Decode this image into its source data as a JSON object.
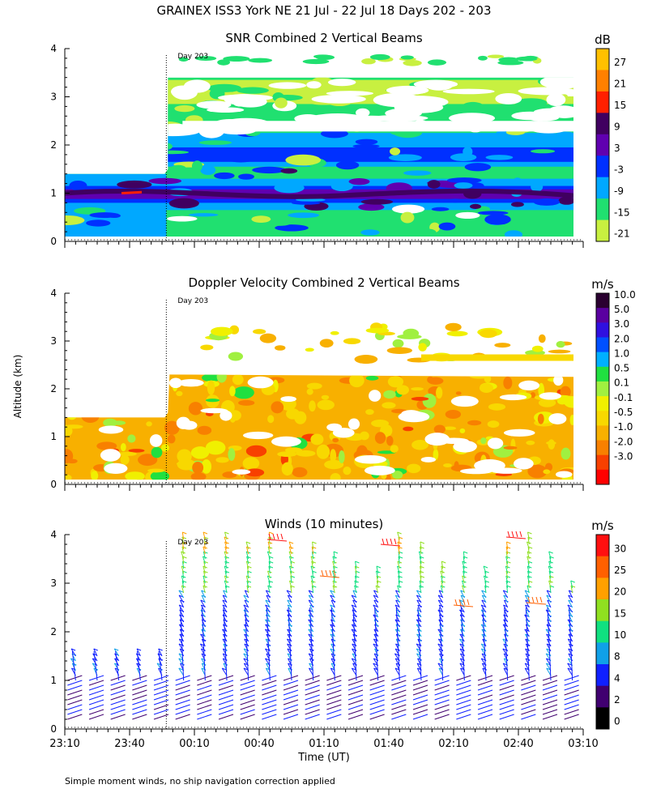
{
  "title": "GRAINEX ISS3 York NE  21 Jul - 22 Jul 18 Days 202 - 203",
  "y_axis_label": "Altitude (km)",
  "x_axis_label": "Time (UT)",
  "footnote": "Simple moment winds, no ship navigation correction applied",
  "day_marker": "Day 203",
  "x_ticks": [
    "23:10",
    "23:40",
    "00:10",
    "00:40",
    "01:10",
    "01:40",
    "02:10",
    "02:40",
    "03:10"
  ],
  "y_ticks": [
    "0",
    "1",
    "2",
    "3",
    "4"
  ],
  "panels": [
    {
      "title": "SNR Combined 2 Vertical Beams",
      "unit": "dB",
      "colorbar_labels": [
        "27",
        "21",
        "15",
        "9",
        "3",
        "-3",
        "-9",
        "-15",
        "-21"
      ],
      "colors": [
        "#ffc000",
        "#ff8000",
        "#ff2000",
        "#400060",
        "#6000b0",
        "#0030ff",
        "#00a8ff",
        "#20e070",
        "#c8f040"
      ]
    },
    {
      "title": "Doppler Velocity Combined 2 Vertical Beams",
      "unit": "m/s",
      "colorbar_labels": [
        "10.0",
        "5.0",
        "3.0",
        "2.0",
        "1.0",
        "0.5",
        "0.1",
        "-0.1",
        "-0.5",
        "-1.0",
        "-2.0",
        "-3.0"
      ],
      "colors": [
        "#2a0030",
        "#5a00a0",
        "#3010e0",
        "#0050ff",
        "#00b0ff",
        "#20e040",
        "#a0f040",
        "#f0f000",
        "#f8d800",
        "#f8b000",
        "#f88000",
        "#f84000",
        "#ff0000"
      ]
    },
    {
      "title": "Winds (10 minutes)",
      "unit": "m/s",
      "colorbar_labels": [
        "30",
        "25",
        "20",
        "15",
        "10",
        "8",
        "4",
        "2",
        "0"
      ],
      "colors": [
        "#ff1010",
        "#ff6000",
        "#ffa000",
        "#90e020",
        "#10e080",
        "#10a0e8",
        "#1020ff",
        "#400070",
        "#000000"
      ]
    }
  ],
  "chart_data": [
    {
      "type": "heatmap",
      "title": "SNR Combined 2 Vertical Beams",
      "unit": "dB",
      "xlabel": "Time (UT)",
      "ylabel": "Altitude (km)",
      "x_range": [
        "23:10",
        "03:10"
      ],
      "ylim": [
        0,
        4
      ],
      "colorbar_levels": [
        27,
        21,
        15,
        9,
        3,
        -3,
        -9,
        -15,
        -21
      ],
      "day_boundary": "00:00",
      "data_extent_km": [
        {
          "from": "23:10",
          "to": "00:00",
          "top": 1.4
        },
        {
          "from": "00:00",
          "to": "03:00",
          "top": 3.9
        }
      ],
      "bands": [
        {
          "alt_km": 1.0,
          "snr_db": 3
        },
        {
          "alt_km": 1.8,
          "snr_db": -3
        },
        {
          "alt_km": 2.1,
          "snr_db": -3
        },
        {
          "alt_km": 2.6,
          "snr_db": -15
        },
        {
          "alt_km": 3.2,
          "snr_db": -21
        }
      ]
    },
    {
      "type": "heatmap",
      "title": "Doppler Velocity Combined 2 Vertical Beams",
      "unit": "m/s",
      "xlabel": "Time (UT)",
      "ylabel": "Altitude (km)",
      "x_range": [
        "23:10",
        "03:10"
      ],
      "ylim": [
        0,
        4
      ],
      "colorbar_levels": [
        10.0,
        5.0,
        3.0,
        2.0,
        1.0,
        0.5,
        0.1,
        -0.1,
        -0.5,
        -1.0,
        -2.0,
        -3.0
      ],
      "day_boundary": "00:00",
      "data_extent_km": [
        {
          "from": "23:10",
          "to": "00:00",
          "top": 1.4
        },
        {
          "from": "00:00",
          "to": "03:00",
          "top": 2.3
        }
      ],
      "typical_velocity_m_s": -0.5
    },
    {
      "type": "scatter",
      "title": "Winds (10 minutes)",
      "unit": "m/s",
      "xlabel": "Time (UT)",
      "ylabel": "Altitude (km)",
      "x_range": [
        "23:10",
        "03:10"
      ],
      "ylim": [
        0,
        4
      ],
      "colorbar_levels": [
        30,
        25,
        20,
        15,
        10,
        8,
        4,
        2,
        0
      ],
      "profile_times": [
        "23:15",
        "23:25",
        "23:35",
        "23:45",
        "23:55",
        "00:05",
        "00:15",
        "00:25",
        "00:35",
        "00:45",
        "00:55",
        "01:05",
        "01:15",
        "01:25",
        "01:35",
        "01:45",
        "01:55",
        "02:05",
        "02:15",
        "02:25",
        "02:35",
        "02:45",
        "02:55",
        "03:05"
      ],
      "profile_tops_km": [
        1.6,
        1.6,
        1.6,
        1.6,
        1.6,
        4.0,
        4.0,
        4.0,
        3.8,
        4.0,
        3.8,
        3.8,
        3.6,
        3.4,
        3.3,
        4.0,
        3.8,
        3.4,
        3.6,
        3.3,
        3.8,
        4.0,
        3.6,
        3.0
      ],
      "speed_by_alt": [
        {
          "alt_km": 0.5,
          "speed_m_s": 4
        },
        {
          "alt_km": 1.5,
          "speed_m_s": 8
        },
        {
          "alt_km": 2.5,
          "speed_m_s": 8
        },
        {
          "alt_km": 3.5,
          "speed_m_s": 15
        }
      ]
    }
  ]
}
